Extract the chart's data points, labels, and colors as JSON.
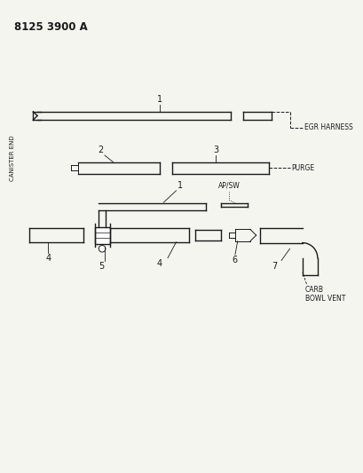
{
  "title": "8125 3900 A",
  "background_color": "#f5f5f0",
  "line_color": "#1a1a1a",
  "text_color": "#1a1a1a",
  "canister_end_label": "CANISTER END",
  "egr_label": "EGR HARNESS",
  "purge_label": "PURGE",
  "apfw_label": "AP/SW",
  "carb_bowl_vent_label": "CARB\nBOWL VENT"
}
